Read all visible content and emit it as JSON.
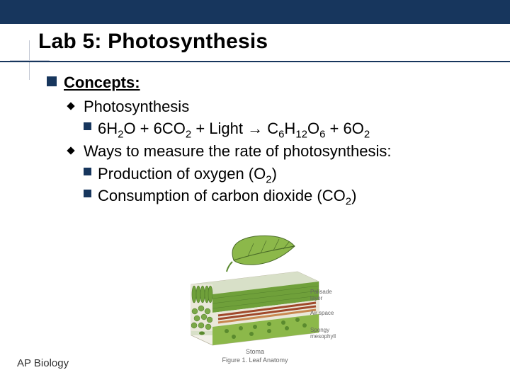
{
  "header": {
    "title": "Lab 5: Photosynthesis"
  },
  "concepts": {
    "heading": "Concepts:",
    "items": [
      {
        "label": "Photosynthesis",
        "sub": [
          {
            "kind": "equation",
            "parts": [
              "6H",
              "2",
              "O + 6CO",
              "2",
              " + Light → C",
              "6",
              "H",
              "12",
              "O",
              "6",
              " + 6O",
              "2"
            ]
          }
        ]
      },
      {
        "label": "Ways to measure the rate of photosynthesis:",
        "sub": [
          {
            "kind": "molecule",
            "prefix": "Production of oxygen (O",
            "sub": "2",
            "suffix": ")"
          },
          {
            "kind": "molecule",
            "prefix": "Consumption of carbon dioxide (CO",
            "sub": "2",
            "suffix": ")"
          }
        ]
      }
    ]
  },
  "figure": {
    "stoma_label": "Stoma",
    "caption": "Figure 1. Leaf Anatomy",
    "labels": {
      "palisade": "Palisade layer",
      "airspace": "Air space",
      "spongy": "Spongy mesophyll"
    },
    "colors": {
      "leaf_light": "#8cb84a",
      "leaf_dark": "#5a8a2e",
      "leaf_vein": "#4a6b28",
      "cuticle": "#d8e0c8",
      "palisade": "#6fa03a",
      "palisade_dark": "#4e7a2a",
      "spongy": "#7ba848",
      "vascular_x": "#a0482a",
      "vascular_p": "#c88850",
      "bg": "#f2f0e8",
      "caption_color": "#666666"
    }
  },
  "footer": {
    "text": "AP Biology"
  },
  "style": {
    "accent": "#17365d",
    "title_fontsize": 30,
    "body_fontsize": 22,
    "footer_fontsize": 15,
    "font_family": "Arial"
  }
}
